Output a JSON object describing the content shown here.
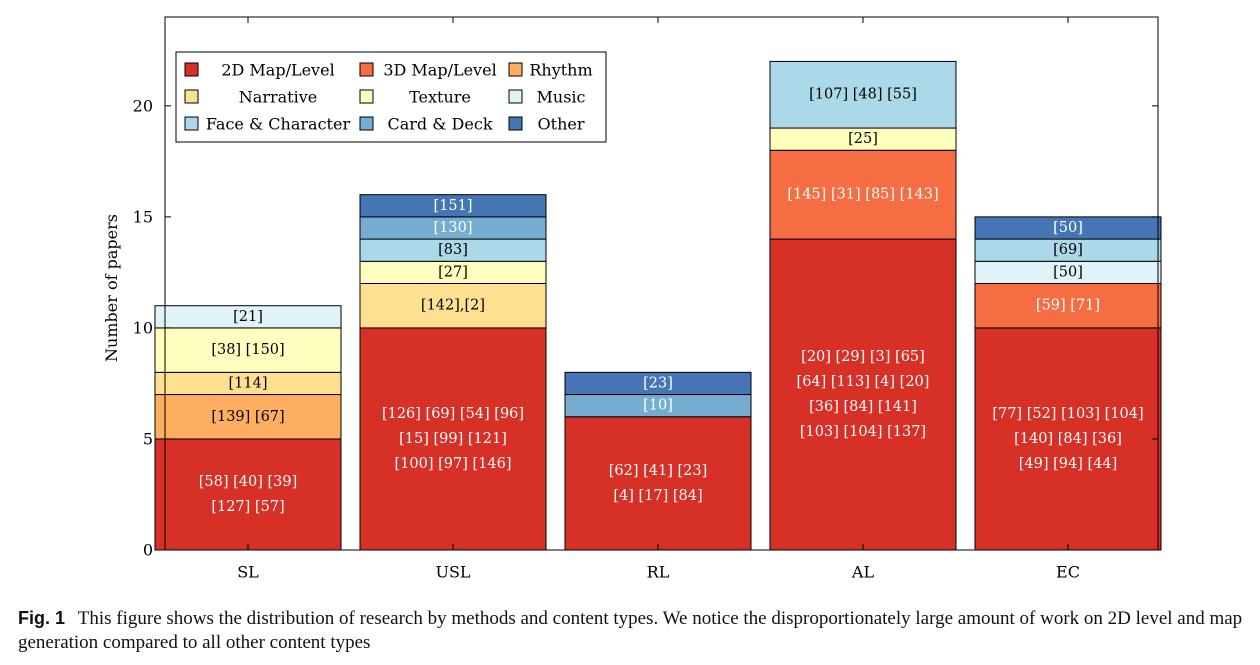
{
  "chart_data": {
    "type": "bar",
    "stacked": true,
    "ylabel": "Number of papers",
    "xlabel": "",
    "ylim": [
      0,
      24
    ],
    "yticks": [
      0,
      5,
      10,
      15,
      20
    ],
    "categories": [
      "SL",
      "USL",
      "RL",
      "AL",
      "EC"
    ],
    "legend": {
      "placement": "top-left",
      "entries": [
        "2D Map/Level",
        "3D Map/Level",
        "Rhythm",
        "Narrative",
        "Texture",
        "Music",
        "Face & Character",
        "Card & Deck",
        "Other"
      ]
    },
    "series": [
      {
        "name": "2D Map/Level",
        "color": "#d73027",
        "values": [
          5,
          10,
          6,
          14,
          10
        ],
        "labels": [
          [
            "[58] [40] [39]",
            "[127] [57]"
          ],
          [
            "[126] [69] [54] [96]",
            "[15] [99] [121]",
            "[100] [97] [146]"
          ],
          [
            "[62] [41] [23]",
            "[4] [17] [84]"
          ],
          [
            "[20] [29] [3] [65]",
            "[64] [113] [4] [20]",
            "[36] [84] [141]",
            "[103] [104] [137]"
          ],
          [
            "[77] [52] [103] [104]",
            "[140] [84] [36]",
            "[49] [94] [44]"
          ]
        ]
      },
      {
        "name": "3D Map/Level",
        "color": "#f46d43",
        "values": [
          0,
          0,
          0,
          4,
          2
        ],
        "labels": [
          [],
          [],
          [],
          [
            "[145] [31] [85] [143]"
          ],
          [
            "[59] [71]"
          ]
        ]
      },
      {
        "name": "Rhythm",
        "color": "#fdae61",
        "values": [
          2,
          0,
          0,
          0,
          0
        ],
        "labels": [
          [
            "[139] [67]"
          ],
          [],
          [],
          [],
          []
        ]
      },
      {
        "name": "Narrative",
        "color": "#fee090",
        "values": [
          1,
          2,
          0,
          0,
          0
        ],
        "labels": [
          [
            "[114]"
          ],
          [
            "[142],[2]"
          ],
          [],
          [],
          []
        ]
      },
      {
        "name": "Texture",
        "color": "#ffffbf",
        "values": [
          2,
          1,
          0,
          1,
          0
        ],
        "labels": [
          [
            "[38] [150]"
          ],
          [
            "[27]"
          ],
          [],
          [
            "[25]"
          ],
          []
        ]
      },
      {
        "name": "Music",
        "color": "#e0f3f8",
        "values": [
          1,
          0,
          0,
          0,
          1
        ],
        "labels": [
          [
            "[21]"
          ],
          [],
          [],
          [],
          [
            "[50]"
          ]
        ]
      },
      {
        "name": "Face & Character",
        "color": "#abd9e9",
        "values": [
          0,
          1,
          0,
          3,
          1
        ],
        "labels": [
          [],
          [
            "[83]"
          ],
          [],
          [
            "[107] [48] [55]"
          ],
          [
            "[69]"
          ]
        ]
      },
      {
        "name": "Card & Deck",
        "color": "#74add1",
        "values": [
          0,
          1,
          1,
          0,
          0
        ],
        "labels": [
          [],
          [
            "[130]"
          ],
          [
            "[10]"
          ],
          [],
          []
        ]
      },
      {
        "name": "Other",
        "color": "#4575b4",
        "values": [
          0,
          1,
          1,
          0,
          1
        ],
        "labels": [
          [],
          [
            "[151]"
          ],
          [
            "[23]"
          ],
          [],
          [
            "[50]"
          ]
        ]
      }
    ]
  },
  "caption": {
    "fig_label": "Fig. 1",
    "text": "This figure shows the distribution of research by methods and content types. We notice the disproportionately large amount of work on 2D level and map generation compared to all other content types"
  }
}
